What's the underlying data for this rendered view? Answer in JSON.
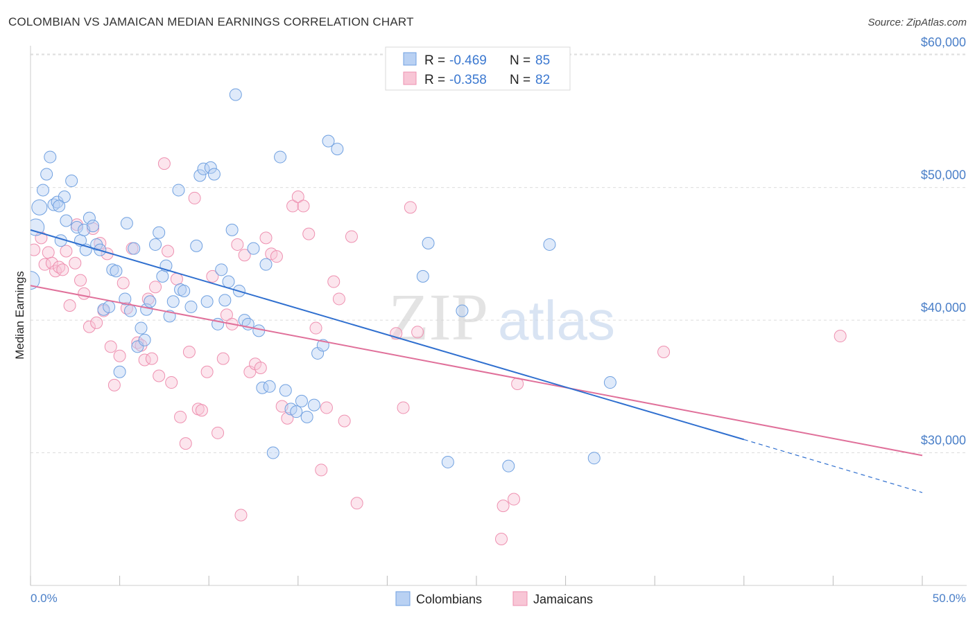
{
  "title": "COLOMBIAN VS JAMAICAN MEDIAN EARNINGS CORRELATION CHART",
  "source": "Source: ZipAtlas.com",
  "legend_stats": [
    {
      "r_label": "R =",
      "r_value": "-0.469",
      "n_label": "N =",
      "n_value": "85"
    },
    {
      "r_label": "R =",
      "r_value": "-0.358",
      "n_label": "N =",
      "n_value": "82"
    }
  ],
  "watermark": {
    "zip": "ZIP",
    "atlas": "atlas"
  },
  "chart_data": {
    "type": "scatter",
    "title": "COLOMBIAN VS JAMAICAN MEDIAN EARNINGS CORRELATION CHART",
    "xlabel": "",
    "ylabel": "Median Earnings",
    "xlim": [
      0,
      50
    ],
    "ylim": [
      20000,
      61000
    ],
    "x_tick_labels": [
      "0.0%",
      "50.0%"
    ],
    "y_ticks": [
      30000,
      40000,
      50000,
      60000
    ],
    "y_tick_labels": [
      "$30,000",
      "$40,000",
      "$50,000",
      "$60,000"
    ],
    "grid": true,
    "legend_position": "top-center",
    "colors": {
      "colombians": "#6fa0e0",
      "jamaicans": "#ee90b0",
      "colombians_line": "#2f6fcf",
      "jamaicans_line": "#e0709a"
    },
    "series": [
      {
        "name": "Colombians",
        "trend": {
          "x0": 0,
          "y0": 46800,
          "x1": 40,
          "y1": 31000,
          "dash_to_x": 50,
          "dash_to_y": 27000
        },
        "points": [
          [
            0.0,
            43000
          ],
          [
            0.3,
            47000
          ],
          [
            0.5,
            48500
          ],
          [
            0.7,
            49800
          ],
          [
            0.9,
            51000
          ],
          [
            1.1,
            52300
          ],
          [
            1.3,
            48700
          ],
          [
            1.5,
            48900
          ],
          [
            1.7,
            46000
          ],
          [
            1.9,
            49300
          ],
          [
            2.0,
            47500
          ],
          [
            2.3,
            50500
          ],
          [
            2.6,
            47000
          ],
          [
            2.8,
            46000
          ],
          [
            3.0,
            46800
          ],
          [
            3.1,
            45300
          ],
          [
            3.3,
            47700
          ],
          [
            3.5,
            47100
          ],
          [
            3.7,
            45700
          ],
          [
            3.9,
            45300
          ],
          [
            4.1,
            40800
          ],
          [
            4.4,
            41000
          ],
          [
            4.6,
            43800
          ],
          [
            4.8,
            43700
          ],
          [
            5.0,
            36100
          ],
          [
            5.3,
            41600
          ],
          [
            5.4,
            47300
          ],
          [
            5.6,
            40700
          ],
          [
            5.8,
            45400
          ],
          [
            6.0,
            38000
          ],
          [
            6.2,
            39400
          ],
          [
            6.4,
            38500
          ],
          [
            6.5,
            40800
          ],
          [
            6.7,
            41400
          ],
          [
            7.0,
            45700
          ],
          [
            7.2,
            46600
          ],
          [
            7.4,
            43300
          ],
          [
            7.6,
            44100
          ],
          [
            7.8,
            40300
          ],
          [
            8.0,
            41400
          ],
          [
            8.3,
            49800
          ],
          [
            8.4,
            42300
          ],
          [
            8.6,
            42200
          ],
          [
            9.0,
            41000
          ],
          [
            9.3,
            45600
          ],
          [
            9.5,
            50900
          ],
          [
            9.7,
            51400
          ],
          [
            9.9,
            41400
          ],
          [
            10.1,
            51500
          ],
          [
            10.3,
            51000
          ],
          [
            10.5,
            39700
          ],
          [
            10.7,
            43800
          ],
          [
            10.9,
            41500
          ],
          [
            11.1,
            42900
          ],
          [
            11.3,
            46800
          ],
          [
            11.5,
            57000
          ],
          [
            11.7,
            42200
          ],
          [
            12.0,
            40000
          ],
          [
            12.2,
            39700
          ],
          [
            12.5,
            45400
          ],
          [
            12.8,
            39200
          ],
          [
            13.0,
            34900
          ],
          [
            13.2,
            44200
          ],
          [
            13.4,
            35000
          ],
          [
            13.6,
            30000
          ],
          [
            14.0,
            52300
          ],
          [
            14.3,
            34700
          ],
          [
            14.6,
            33300
          ],
          [
            14.9,
            33100
          ],
          [
            15.2,
            33900
          ],
          [
            15.5,
            32700
          ],
          [
            15.9,
            33600
          ],
          [
            16.1,
            37500
          ],
          [
            16.4,
            38100
          ],
          [
            16.7,
            53500
          ],
          [
            17.2,
            52900
          ],
          [
            22.0,
            43300
          ],
          [
            22.3,
            45800
          ],
          [
            23.4,
            29300
          ],
          [
            24.2,
            40700
          ],
          [
            26.8,
            29000
          ],
          [
            29.1,
            45700
          ],
          [
            31.6,
            29600
          ],
          [
            32.5,
            35300
          ],
          [
            1.6,
            48600
          ]
        ]
      },
      {
        "name": "Jamaicans",
        "trend": {
          "x0": 0,
          "y0": 42600,
          "x1": 50,
          "y1": 29800
        },
        "points": [
          [
            0.2,
            45300
          ],
          [
            0.6,
            46200
          ],
          [
            0.8,
            44200
          ],
          [
            1.0,
            45100
          ],
          [
            1.2,
            44300
          ],
          [
            1.4,
            43700
          ],
          [
            1.6,
            44000
          ],
          [
            1.8,
            43800
          ],
          [
            2.0,
            45200
          ],
          [
            2.2,
            41100
          ],
          [
            2.5,
            44300
          ],
          [
            2.6,
            47200
          ],
          [
            2.8,
            43000
          ],
          [
            3.0,
            42000
          ],
          [
            3.3,
            39500
          ],
          [
            3.5,
            46900
          ],
          [
            3.7,
            39800
          ],
          [
            3.9,
            45800
          ],
          [
            4.1,
            40700
          ],
          [
            4.3,
            45000
          ],
          [
            4.5,
            38000
          ],
          [
            4.7,
            35100
          ],
          [
            5.0,
            37300
          ],
          [
            5.2,
            42800
          ],
          [
            5.4,
            40900
          ],
          [
            5.7,
            45400
          ],
          [
            6.0,
            38300
          ],
          [
            6.2,
            38100
          ],
          [
            6.4,
            37000
          ],
          [
            6.6,
            41600
          ],
          [
            6.8,
            37100
          ],
          [
            7.0,
            42500
          ],
          [
            7.2,
            35800
          ],
          [
            7.5,
            51800
          ],
          [
            7.7,
            45200
          ],
          [
            7.9,
            35300
          ],
          [
            8.2,
            43100
          ],
          [
            8.4,
            32700
          ],
          [
            8.7,
            30700
          ],
          [
            8.9,
            37600
          ],
          [
            9.2,
            49200
          ],
          [
            9.4,
            33300
          ],
          [
            9.6,
            33200
          ],
          [
            9.9,
            36100
          ],
          [
            10.2,
            43300
          ],
          [
            10.5,
            31500
          ],
          [
            10.8,
            37100
          ],
          [
            11.0,
            40400
          ],
          [
            11.3,
            39700
          ],
          [
            11.6,
            45700
          ],
          [
            11.8,
            25300
          ],
          [
            12.0,
            44900
          ],
          [
            12.3,
            36100
          ],
          [
            12.6,
            36700
          ],
          [
            12.9,
            36400
          ],
          [
            13.2,
            46200
          ],
          [
            13.5,
            45000
          ],
          [
            13.8,
            44800
          ],
          [
            14.1,
            33500
          ],
          [
            14.4,
            32600
          ],
          [
            14.7,
            48600
          ],
          [
            15.0,
            49300
          ],
          [
            15.3,
            48600
          ],
          [
            15.6,
            46500
          ],
          [
            16.0,
            39400
          ],
          [
            16.3,
            28700
          ],
          [
            16.6,
            33400
          ],
          [
            17.0,
            42900
          ],
          [
            17.3,
            41600
          ],
          [
            17.6,
            32400
          ],
          [
            18.0,
            46300
          ],
          [
            18.3,
            26200
          ],
          [
            20.5,
            39000
          ],
          [
            20.9,
            33400
          ],
          [
            21.3,
            48500
          ],
          [
            26.5,
            26000
          ],
          [
            27.1,
            26500
          ],
          [
            27.3,
            35200
          ],
          [
            26.4,
            23500
          ],
          [
            35.5,
            37600
          ],
          [
            45.4,
            38800
          ],
          [
            21.7,
            39100
          ]
        ]
      }
    ]
  },
  "bottom_legend": [
    "Colombians",
    "Jamaicans"
  ]
}
